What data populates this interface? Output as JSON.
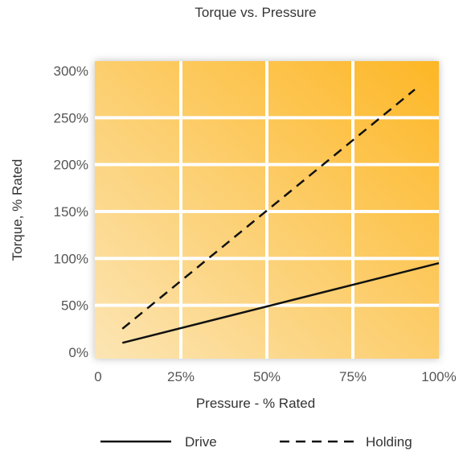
{
  "chart_data": {
    "type": "line",
    "title": "Torque vs. Pressure",
    "xlabel": "Pressure - % Rated",
    "ylabel": "Torque, % Rated",
    "xlim": [
      0,
      100
    ],
    "ylim": [
      0,
      300
    ],
    "x_ticks": [
      0,
      25,
      50,
      75,
      100
    ],
    "x_tick_labels": [
      "0",
      "25%",
      "50%",
      "75%",
      "100%"
    ],
    "y_ticks": [
      0,
      50,
      100,
      150,
      200,
      250,
      300
    ],
    "y_tick_labels": [
      "0%",
      "50%",
      "100%",
      "150%",
      "200%",
      "250%",
      "300%"
    ],
    "grid": true,
    "legend_position": "bottom",
    "series": [
      {
        "name": "Drive",
        "style": "solid",
        "color": "#111111",
        "x": [
          8,
          100
        ],
        "y": [
          10,
          95
        ]
      },
      {
        "name": "Holding",
        "style": "dashed",
        "color": "#111111",
        "x": [
          8,
          93
        ],
        "y": [
          25,
          280
        ]
      }
    ],
    "background_colors": [
      "#fce5b4",
      "#fdb726"
    ]
  }
}
